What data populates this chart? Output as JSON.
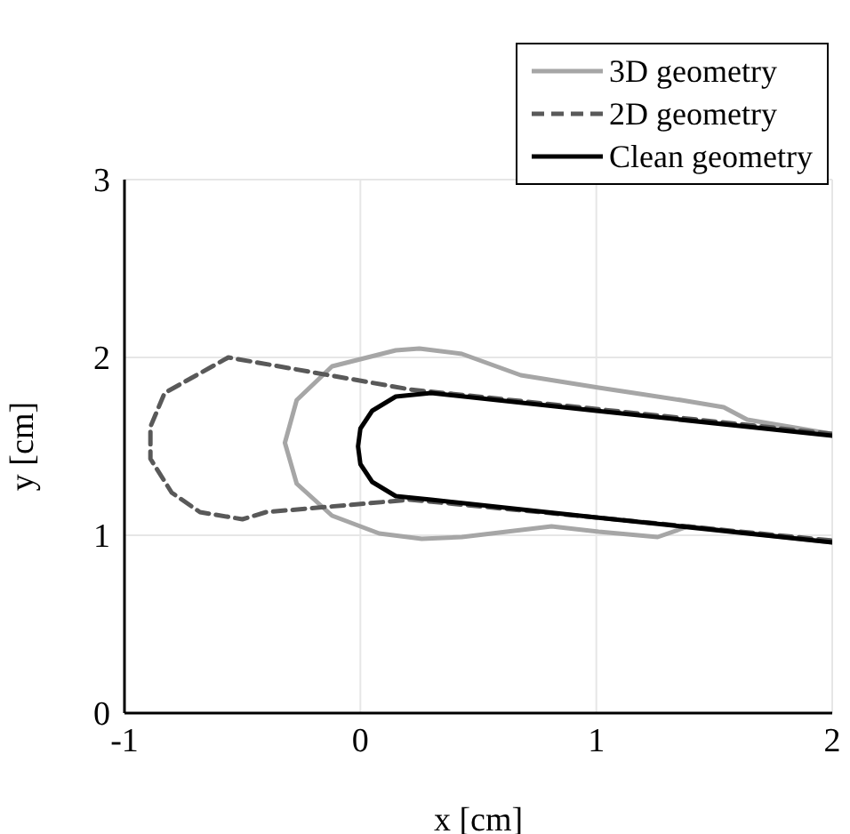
{
  "chart_data": {
    "type": "line",
    "xlabel": "x [cm]",
    "ylabel": "y [cm]",
    "xlim": [
      -1,
      2
    ],
    "ylim": [
      0,
      3
    ],
    "xticks": [
      -1,
      0,
      1,
      2
    ],
    "yticks": [
      0,
      1,
      2,
      3
    ],
    "grid": true,
    "legend": "top right",
    "marker": "none",
    "series": [
      {
        "name": "3D geometry",
        "color": "#a6a6a6",
        "line_style": "solid",
        "x": [
          2,
          1.64,
          1.54,
          1.36,
          1.16,
          1.01,
          0.68,
          0.43,
          0.25,
          0.15,
          -0.12,
          -0.27,
          -0.32,
          -0.27,
          -0.12,
          0.08,
          0.26,
          0.43,
          0.81,
          1.01,
          1.26,
          1.39,
          1.45,
          2
        ],
        "values": [
          1.57,
          1.65,
          1.72,
          1.76,
          1.8,
          1.83,
          1.9,
          2.02,
          2.05,
          2.04,
          1.95,
          1.76,
          1.52,
          1.29,
          1.11,
          1.01,
          0.98,
          0.99,
          1.05,
          1.02,
          0.99,
          1.05,
          1.04,
          0.96
        ]
      },
      {
        "name": "2D geometry",
        "color": "#595959",
        "line_style": "dashed",
        "x": [
          2,
          1,
          0.21,
          -0.56,
          -0.83,
          -0.89,
          -0.89,
          -0.8,
          -0.68,
          -0.5,
          -0.4,
          0.21,
          1,
          2
        ],
        "values": [
          1.57,
          1.71,
          1.82,
          2.0,
          1.8,
          1.61,
          1.43,
          1.24,
          1.13,
          1.09,
          1.13,
          1.2,
          1.1,
          0.97
        ]
      },
      {
        "name": "Clean geometry",
        "color": "#000000",
        "line_style": "solid",
        "x": [
          2,
          1,
          0.3,
          0.15,
          0.05,
          0,
          -0.01,
          0,
          0.05,
          0.15,
          0.3,
          1,
          2
        ],
        "values": [
          1.56,
          1.7,
          1.8,
          1.78,
          1.7,
          1.6,
          1.5,
          1.4,
          1.3,
          1.22,
          1.2,
          1.1,
          0.96
        ]
      }
    ]
  }
}
